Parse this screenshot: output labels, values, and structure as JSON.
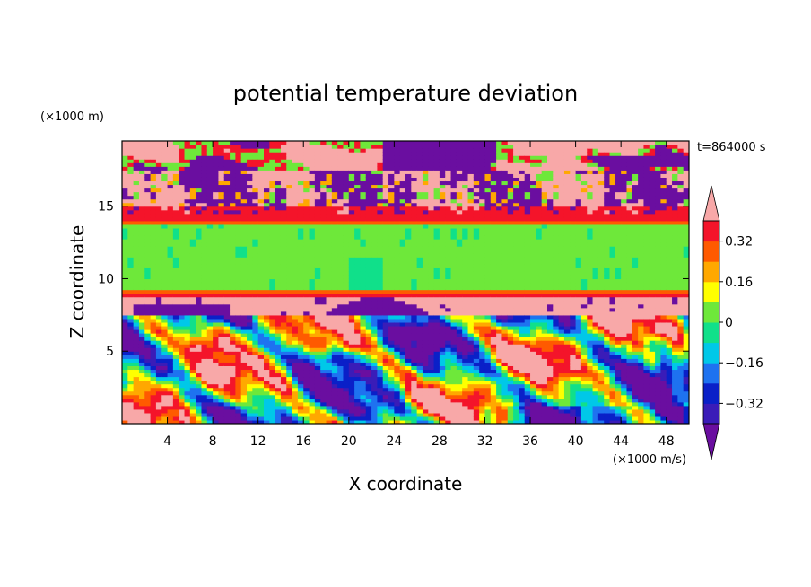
{
  "chart_data": {
    "type": "heatmap",
    "title": "potential temperature deviation",
    "xlabel": "X coordinate",
    "ylabel": "Z coordinate",
    "x_unit": "(×1000 m/s)",
    "y_unit": "(×1000 m)",
    "time_label": "t=864000 s",
    "xlim": [
      0,
      50
    ],
    "ylim": [
      0,
      19.5
    ],
    "x_ticks": [
      4,
      8,
      12,
      16,
      20,
      24,
      28,
      32,
      36,
      40,
      44,
      48
    ],
    "y_ticks": [
      5,
      10,
      15
    ],
    "colorbar": {
      "levels": [
        -0.4,
        -0.32,
        -0.24,
        -0.16,
        -0.08,
        0,
        0.08,
        0.16,
        0.24,
        0.32,
        0.4
      ],
      "labeled_levels": [
        {
          "value": 0.32,
          "label": "0.32"
        },
        {
          "value": 0.16,
          "label": "0.16"
        },
        {
          "value": 0,
          "label": "0"
        },
        {
          "value": -0.16,
          "label": "−0.16"
        },
        {
          "value": -0.32,
          "label": "−0.32"
        }
      ],
      "colors": [
        "#6a0ea0",
        "#3a1cb8",
        "#0a20c8",
        "#1e72f0",
        "#00c8e8",
        "#10e08a",
        "#6ee83a",
        "#ffff00",
        "#ffa800",
        "#ff5a00",
        "#f4142a",
        "#f8a8a8"
      ],
      "extend": "both"
    },
    "layers": [
      {
        "z_range": [
          17.5,
          19.5
        ],
        "description": "upper stratosphere: mixed pink and purple patches",
        "values": [
          0.44,
          -0.44
        ]
      },
      {
        "z_range": [
          14.5,
          17.5
        ],
        "description": "noisy pink/purple band with speckles",
        "values": [
          0.44,
          -0.44
        ]
      },
      {
        "z_range": [
          13.8,
          14.5
        ],
        "description": "red/orange thin band",
        "values": [
          0.34
        ]
      },
      {
        "z_range": [
          9.2,
          13.8
        ],
        "description": "mostly green near zero",
        "values": [
          0.0
        ]
      },
      {
        "z_range": [
          8.8,
          9.2
        ],
        "description": "red/orange thin band",
        "values": [
          0.34
        ]
      },
      {
        "z_range": [
          7.5,
          8.8
        ],
        "description": "pink with purple domes",
        "values": [
          0.44,
          -0.44
        ]
      },
      {
        "z_range": [
          0,
          7.5
        ],
        "description": "turbulent mixed convective layer",
        "values": [
          -0.44,
          0.44
        ]
      }
    ]
  }
}
